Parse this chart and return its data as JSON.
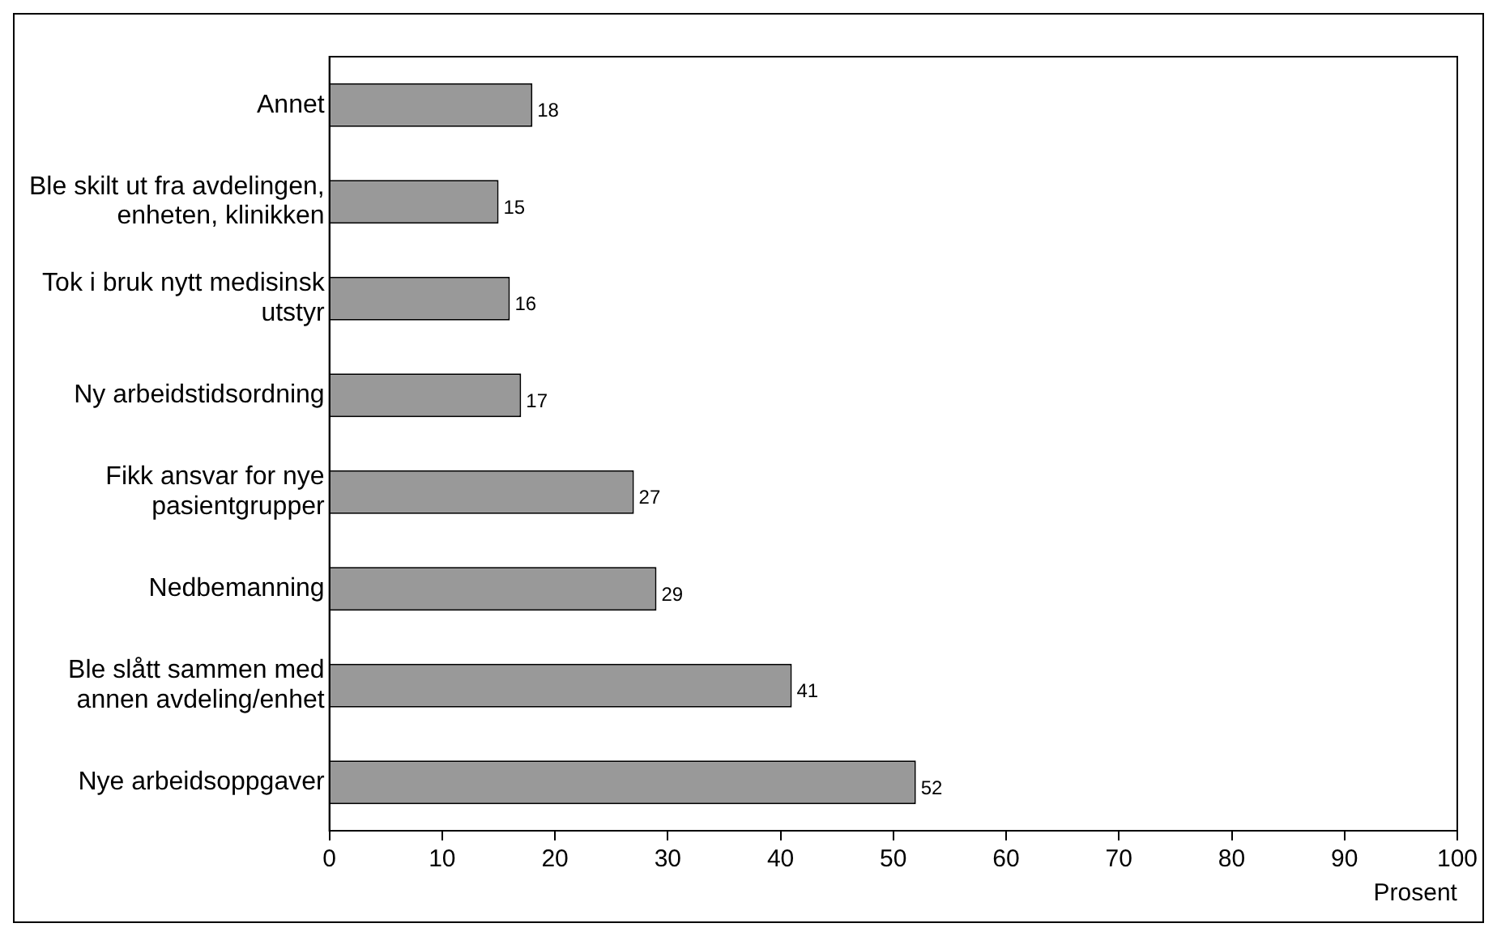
{
  "chart_data": {
    "type": "bar",
    "orientation": "horizontal",
    "xlabel": "Prosent",
    "categories": [
      "Annet",
      "Ble skilt ut fra avdelingen,\nenheten, klinikken",
      "Tok i bruk nytt medisinsk\nutstyr",
      "Ny arbeidstidsordning",
      "Fikk ansvar for nye\npasientgrupper",
      "Nedbemanning",
      "Ble slått sammen med\nannen avdeling/enhet",
      "Nye arbeidsoppgaver"
    ],
    "values": [
      18,
      15,
      16,
      17,
      27,
      29,
      41,
      52
    ],
    "color": "#999999",
    "xlim": [
      0,
      100
    ],
    "xticks": [
      0,
      10,
      20,
      30,
      40,
      50,
      60,
      70,
      80,
      90,
      100
    ],
    "data_labels": true,
    "grid": false,
    "legend": false
  }
}
